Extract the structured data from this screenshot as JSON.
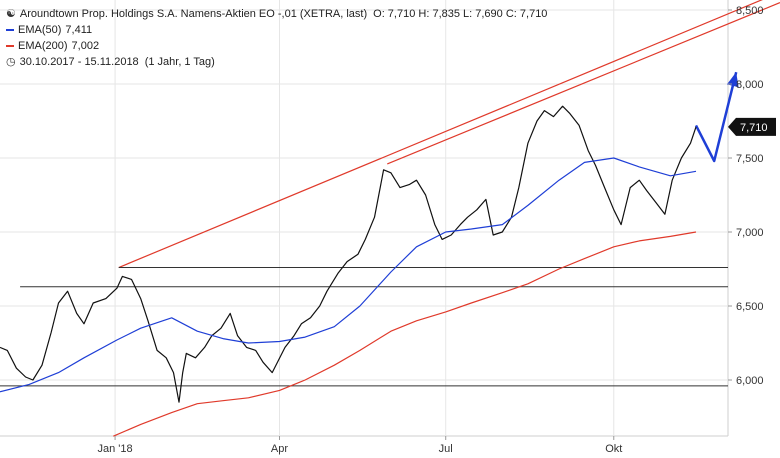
{
  "header": {
    "icon": "candlestick-icon",
    "instrument": "Aroundtown Prop. Holdings S.A. Namens-Aktien EO -,01 (XETRA, last)",
    "ohlc": "O: 7,710  H: 7,835  L: 7,690  C: 7,710",
    "period_icon": "clock-icon",
    "period": "30.10.2017 - 15.11.2018",
    "interval": "(1 Jahr, 1 Tag)"
  },
  "colors": {
    "price": "#111111",
    "ema50": "#1f3fd6",
    "ema200": "#e03a2b",
    "trendline": "#e03a2b",
    "support": "#333333",
    "arrow": "#1f3fd6",
    "last_badge": "#111111",
    "grid": "#e6e6e6"
  },
  "chart_data": {
    "type": "line",
    "ylim": [
      5.75,
      8.5
    ],
    "y_scale": "linear",
    "yticks": [
      "8,500",
      "8,000",
      "7,500",
      "7,000",
      "6,500",
      "6,000"
    ],
    "ytick_values": [
      8.5,
      8.0,
      7.5,
      7.0,
      6.5,
      6.0
    ],
    "xticks": [
      "Jan '18",
      "Apr",
      "Jul",
      "Okt"
    ],
    "xtick_dates": [
      "2018-01-01",
      "2018-04-01",
      "2018-07-01",
      "2018-10-01"
    ],
    "x_range": [
      "2017-10-30",
      "2018-12-31"
    ],
    "grid": true,
    "legend_position": "top-left",
    "last_price_label": "7,710",
    "last_price": 7.71,
    "series": [
      {
        "name": "Aroundtown Prop. Holdings S.A.",
        "role": "price",
        "x": [
          "2017-10-30",
          "2017-11-03",
          "2017-11-08",
          "2017-11-13",
          "2017-11-17",
          "2017-11-22",
          "2017-11-27",
          "2017-12-01",
          "2017-12-06",
          "2017-12-11",
          "2017-12-15",
          "2017-12-20",
          "2017-12-27",
          "2018-01-02",
          "2018-01-05",
          "2018-01-10",
          "2018-01-15",
          "2018-01-19",
          "2018-01-24",
          "2018-01-29",
          "2018-02-02",
          "2018-02-05",
          "2018-02-07",
          "2018-02-09",
          "2018-02-14",
          "2018-02-19",
          "2018-02-23",
          "2018-02-28",
          "2018-03-05",
          "2018-03-09",
          "2018-03-14",
          "2018-03-19",
          "2018-03-23",
          "2018-03-28",
          "2018-04-04",
          "2018-04-09",
          "2018-04-13",
          "2018-04-18",
          "2018-04-23",
          "2018-04-27",
          "2018-05-03",
          "2018-05-08",
          "2018-05-14",
          "2018-05-18",
          "2018-05-23",
          "2018-05-28",
          "2018-06-01",
          "2018-06-06",
          "2018-06-11",
          "2018-06-15",
          "2018-06-20",
          "2018-06-25",
          "2018-06-29",
          "2018-07-04",
          "2018-07-09",
          "2018-07-13",
          "2018-07-18",
          "2018-07-23",
          "2018-07-27",
          "2018-08-01",
          "2018-08-06",
          "2018-08-10",
          "2018-08-15",
          "2018-08-20",
          "2018-08-24",
          "2018-08-29",
          "2018-09-03",
          "2018-09-07",
          "2018-09-12",
          "2018-09-17",
          "2018-09-21",
          "2018-09-26",
          "2018-10-01",
          "2018-10-05",
          "2018-10-10",
          "2018-10-15",
          "2018-10-19",
          "2018-10-24",
          "2018-10-29",
          "2018-11-02",
          "2018-11-07",
          "2018-11-12",
          "2018-11-15"
        ],
        "values": [
          6.22,
          6.2,
          6.08,
          6.02,
          6.0,
          6.1,
          6.32,
          6.52,
          6.6,
          6.45,
          6.38,
          6.52,
          6.55,
          6.62,
          6.7,
          6.68,
          6.55,
          6.4,
          6.2,
          6.15,
          6.05,
          5.85,
          6.05,
          6.18,
          6.15,
          6.22,
          6.3,
          6.35,
          6.45,
          6.3,
          6.22,
          6.2,
          6.12,
          6.05,
          6.22,
          6.3,
          6.38,
          6.42,
          6.5,
          6.6,
          6.72,
          6.8,
          6.85,
          6.95,
          7.1,
          7.42,
          7.4,
          7.3,
          7.32,
          7.35,
          7.25,
          7.05,
          6.95,
          6.98,
          7.05,
          7.1,
          7.15,
          7.22,
          6.98,
          7.0,
          7.1,
          7.3,
          7.6,
          7.75,
          7.82,
          7.78,
          7.85,
          7.8,
          7.72,
          7.55,
          7.45,
          7.3,
          7.15,
          7.05,
          7.3,
          7.35,
          7.28,
          7.2,
          7.12,
          7.35,
          7.5,
          7.6,
          7.71
        ]
      },
      {
        "name": "EMA(50)",
        "role": "ema50",
        "label": "EMA(50)",
        "value_label": "7,411",
        "x": [
          "2017-10-30",
          "2017-11-15",
          "2017-12-01",
          "2017-12-15",
          "2018-01-02",
          "2018-01-15",
          "2018-02-01",
          "2018-02-15",
          "2018-03-01",
          "2018-03-15",
          "2018-04-01",
          "2018-04-15",
          "2018-05-01",
          "2018-05-15",
          "2018-06-01",
          "2018-06-15",
          "2018-07-01",
          "2018-07-15",
          "2018-08-01",
          "2018-08-15",
          "2018-09-01",
          "2018-09-15",
          "2018-10-01",
          "2018-10-15",
          "2018-11-01",
          "2018-11-15"
        ],
        "values": [
          5.92,
          5.97,
          6.05,
          6.15,
          6.27,
          6.35,
          6.42,
          6.33,
          6.28,
          6.25,
          6.26,
          6.29,
          6.36,
          6.5,
          6.73,
          6.9,
          7.0,
          7.02,
          7.05,
          7.18,
          7.35,
          7.47,
          7.5,
          7.44,
          7.38,
          7.41
        ]
      },
      {
        "name": "EMA(200)",
        "role": "ema200",
        "label": "EMA(200)",
        "value_label": "7,002",
        "x": [
          "2017-12-31",
          "2018-01-15",
          "2018-02-01",
          "2018-02-15",
          "2018-03-01",
          "2018-03-15",
          "2018-04-01",
          "2018-04-15",
          "2018-05-01",
          "2018-05-15",
          "2018-06-01",
          "2018-06-15",
          "2018-07-01",
          "2018-07-15",
          "2018-08-01",
          "2018-08-15",
          "2018-09-01",
          "2018-09-15",
          "2018-10-01",
          "2018-10-15",
          "2018-11-01",
          "2018-11-15"
        ],
        "values": [
          5.62,
          5.7,
          5.78,
          5.84,
          5.86,
          5.88,
          5.93,
          6.0,
          6.1,
          6.2,
          6.33,
          6.4,
          6.46,
          6.52,
          6.59,
          6.65,
          6.75,
          6.82,
          6.9,
          6.94,
          6.97,
          7.0
        ]
      }
    ],
    "annotations": [
      {
        "kind": "trendline",
        "from": [
          "2018-01-03",
          6.76
        ],
        "to": [
          "2018-12-31",
          8.62
        ]
      },
      {
        "kind": "trendline",
        "from": [
          "2018-05-30",
          7.46
        ],
        "to": [
          "2018-12-31",
          8.55
        ]
      },
      {
        "kind": "hline",
        "value": 6.76,
        "from": "2018-01-03"
      },
      {
        "kind": "hline",
        "value": 6.63,
        "from": "2017-11-10"
      },
      {
        "kind": "hline",
        "value": 5.96,
        "from": "2017-10-30"
      },
      {
        "kind": "arrow",
        "points": [
          [
            "2018-11-15",
            7.72
          ],
          [
            "2018-11-25",
            7.48
          ],
          [
            "2018-12-07",
            8.08
          ]
        ]
      }
    ]
  }
}
